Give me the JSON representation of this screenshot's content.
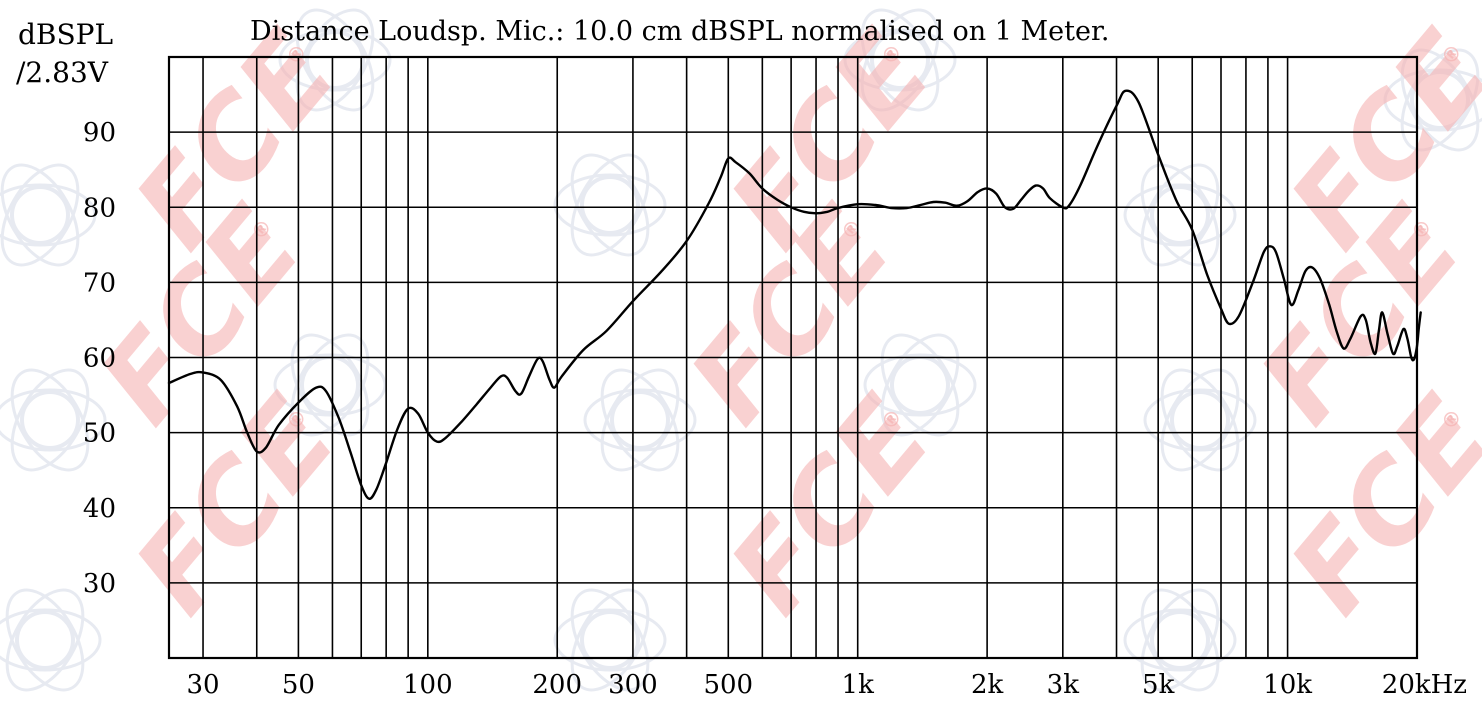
{
  "chart_data": {
    "type": "line",
    "title": "Distance Loudsp. Mic.: 10.0 cm dBSPL normalised on 1 Meter.",
    "ylabel_line1": "dBSPL",
    "ylabel_line2": "/2.83V",
    "xscale": "log",
    "xlim": [
      25,
      20000
    ],
    "ylim": [
      20,
      100
    ],
    "grid": true,
    "y_ticks": [
      {
        "value": 90,
        "label": "90"
      },
      {
        "value": 80,
        "label": "80"
      },
      {
        "value": 70,
        "label": "70"
      },
      {
        "value": 60,
        "label": "60"
      },
      {
        "value": 50,
        "label": "50"
      },
      {
        "value": 40,
        "label": "40"
      },
      {
        "value": 30,
        "label": "30"
      }
    ],
    "x_ticks": [
      {
        "value": 30,
        "label": "30"
      },
      {
        "value": 50,
        "label": "50"
      },
      {
        "value": 100,
        "label": "100"
      },
      {
        "value": 200,
        "label": "200"
      },
      {
        "value": 300,
        "label": "300"
      },
      {
        "value": 500,
        "label": "500"
      },
      {
        "value": 1000,
        "label": "1k"
      },
      {
        "value": 2000,
        "label": "2k"
      },
      {
        "value": 3000,
        "label": "3k"
      },
      {
        "value": 5000,
        "label": "5k"
      },
      {
        "value": 10000,
        "label": "10k"
      },
      {
        "value": 20000,
        "label": "20kHz"
      }
    ],
    "x_gridlines": [
      30,
      40,
      50,
      60,
      70,
      80,
      90,
      100,
      200,
      300,
      400,
      500,
      600,
      700,
      800,
      900,
      1000,
      2000,
      3000,
      4000,
      5000,
      6000,
      7000,
      8000,
      9000,
      10000,
      20000
    ],
    "y_gridlines": [
      30,
      40,
      50,
      60,
      70,
      80,
      90
    ],
    "series": [
      {
        "color": "#000000",
        "points": [
          [
            25,
            56.6
          ],
          [
            28,
            57.8
          ],
          [
            30,
            58.0
          ],
          [
            33,
            57.0
          ],
          [
            36,
            53.5
          ],
          [
            38,
            50.0
          ],
          [
            40,
            47.5
          ],
          [
            42,
            48.0
          ],
          [
            45,
            51.0
          ],
          [
            50,
            54.0
          ],
          [
            55,
            56.0
          ],
          [
            58,
            55.5
          ],
          [
            62,
            52.0
          ],
          [
            66,
            47.5
          ],
          [
            70,
            43.0
          ],
          [
            73,
            41.2
          ],
          [
            76,
            42.5
          ],
          [
            80,
            46.0
          ],
          [
            85,
            50.5
          ],
          [
            90,
            53.2
          ],
          [
            95,
            52.5
          ],
          [
            100,
            50.0
          ],
          [
            105,
            48.8
          ],
          [
            110,
            49.3
          ],
          [
            120,
            51.5
          ],
          [
            130,
            53.8
          ],
          [
            140,
            56.0
          ],
          [
            148,
            57.5
          ],
          [
            153,
            57.3
          ],
          [
            160,
            55.5
          ],
          [
            165,
            55.2
          ],
          [
            172,
            57.5
          ],
          [
            180,
            59.8
          ],
          [
            185,
            59.5
          ],
          [
            192,
            57.0
          ],
          [
            197,
            56.0
          ],
          [
            205,
            57.5
          ],
          [
            230,
            61.0
          ],
          [
            260,
            63.5
          ],
          [
            300,
            67.5
          ],
          [
            350,
            71.5
          ],
          [
            400,
            75.5
          ],
          [
            450,
            80.5
          ],
          [
            480,
            84.0
          ],
          [
            500,
            86.5
          ],
          [
            520,
            86.0
          ],
          [
            560,
            84.5
          ],
          [
            600,
            82.5
          ],
          [
            650,
            81.0
          ],
          [
            700,
            80.0
          ],
          [
            750,
            79.4
          ],
          [
            800,
            79.2
          ],
          [
            850,
            79.4
          ],
          [
            900,
            79.9
          ],
          [
            1000,
            80.4
          ],
          [
            1100,
            80.3
          ],
          [
            1200,
            79.9
          ],
          [
            1300,
            79.9
          ],
          [
            1400,
            80.3
          ],
          [
            1500,
            80.7
          ],
          [
            1600,
            80.6
          ],
          [
            1700,
            80.2
          ],
          [
            1800,
            80.8
          ],
          [
            1900,
            82.0
          ],
          [
            2000,
            82.5
          ],
          [
            2100,
            81.8
          ],
          [
            2200,
            80.0
          ],
          [
            2300,
            79.8
          ],
          [
            2400,
            81.0
          ],
          [
            2500,
            82.2
          ],
          [
            2600,
            82.9
          ],
          [
            2700,
            82.5
          ],
          [
            2800,
            81.2
          ],
          [
            3000,
            80.0
          ],
          [
            3100,
            80.2
          ],
          [
            3300,
            83.0
          ],
          [
            3600,
            88.0
          ],
          [
            4000,
            93.5
          ],
          [
            4200,
            95.5
          ],
          [
            4500,
            94.0
          ],
          [
            5000,
            87.0
          ],
          [
            5500,
            81.0
          ],
          [
            6000,
            77.0
          ],
          [
            6500,
            71.0
          ],
          [
            7000,
            66.5
          ],
          [
            7300,
            64.5
          ],
          [
            7700,
            65.5
          ],
          [
            8300,
            70.0
          ],
          [
            8800,
            74.0
          ],
          [
            9100,
            74.8
          ],
          [
            9400,
            74.0
          ],
          [
            9800,
            70.5
          ],
          [
            10200,
            67.0
          ],
          [
            10600,
            69.0
          ],
          [
            11000,
            71.5
          ],
          [
            11400,
            72.0
          ],
          [
            11900,
            70.5
          ],
          [
            12500,
            67.0
          ],
          [
            13000,
            63.5
          ],
          [
            13500,
            61.2
          ],
          [
            14000,
            62.5
          ],
          [
            14800,
            65.5
          ],
          [
            15200,
            65.0
          ],
          [
            15600,
            62.0
          ],
          [
            16000,
            60.5
          ],
          [
            16300,
            63.5
          ],
          [
            16600,
            66.0
          ],
          [
            17100,
            63.0
          ],
          [
            17600,
            60.5
          ],
          [
            18000,
            61.5
          ],
          [
            18600,
            63.8
          ],
          [
            19000,
            62.5
          ],
          [
            19400,
            60.0
          ],
          [
            19700,
            59.8
          ],
          [
            20000,
            61.5
          ],
          [
            20200,
            64.0
          ],
          [
            20400,
            66.0
          ]
        ]
      }
    ]
  },
  "watermark": {
    "text": "FCE",
    "mark": "®",
    "color": "#f6b3b3",
    "emblem": "speaker-logo-icon",
    "emblem_color": "#d4d9e6"
  }
}
